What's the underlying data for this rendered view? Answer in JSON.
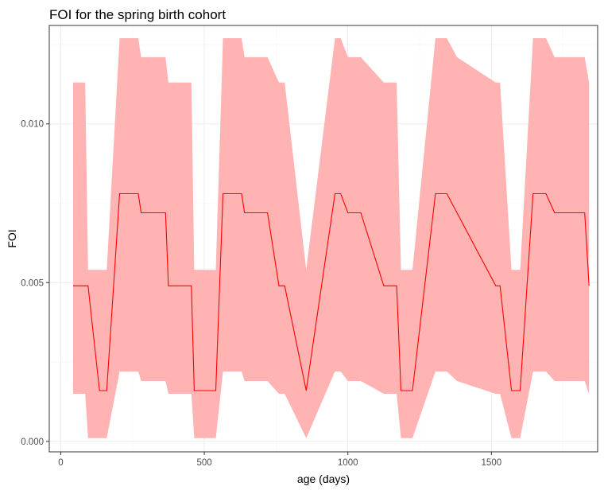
{
  "chart_data": {
    "type": "area",
    "title": "FOI for the spring birth cohort",
    "xlabel": "age (days)",
    "ylabel": "FOI",
    "xlim": [
      -40,
      1870
    ],
    "ylim": [
      -0.00033,
      0.0131
    ],
    "xticks": [
      0,
      500,
      1000,
      1500
    ],
    "xtick_labels": [
      "0",
      "500",
      "1000",
      "1500"
    ],
    "yticks": [
      0.0,
      0.005,
      0.01
    ],
    "ytick_labels": [
      "0.000",
      "0.005",
      "0.010"
    ],
    "grid": true,
    "legend": "none",
    "colors": {
      "line": "#ff0000",
      "ribbon": "#ffb3b3",
      "panel_border": "#333333",
      "grid_major": "#ebebeb",
      "grid_minor": "#f5f5f5",
      "axis_text": "#4d4d4d",
      "title_text": "#000000"
    },
    "series": [
      {
        "x": [
          43,
          85,
          95,
          135,
          160,
          205,
          270,
          280,
          365,
          375,
          455,
          465,
          530,
          540,
          565,
          630,
          640,
          720,
          760,
          780,
          855,
          955,
          975,
          1000,
          1045,
          1125,
          1170,
          1185,
          1225,
          1305,
          1345,
          1380,
          1515,
          1530,
          1570,
          1600,
          1645,
          1690,
          1720,
          1755,
          1800,
          1825,
          1840
        ],
        "estimate": [
          0.0049,
          0.0049,
          0.0049,
          0.0016,
          0.0016,
          0.0078,
          0.0078,
          0.0072,
          0.0072,
          0.0049,
          0.0049,
          0.0016,
          0.0016,
          0.0016,
          0.0078,
          0.0078,
          0.0072,
          0.0072,
          0.0049,
          0.0049,
          0.0016,
          0.0078,
          0.0078,
          0.0072,
          0.0072,
          0.0049,
          0.0049,
          0.0016,
          0.0016,
          0.0078,
          0.0078,
          0.0072,
          0.0049,
          0.0049,
          0.0016,
          0.0016,
          0.0078,
          0.0078,
          0.0072,
          0.0072,
          0.0072,
          0.0072,
          0.0049
        ],
        "upper": [
          0.0113,
          0.0113,
          0.0054,
          0.0054,
          0.0054,
          0.0127,
          0.0127,
          0.0121,
          0.0121,
          0.0113,
          0.0113,
          0.0054,
          0.0054,
          0.0054,
          0.0127,
          0.0127,
          0.0121,
          0.0121,
          0.0113,
          0.0113,
          0.0054,
          0.0127,
          0.0127,
          0.0121,
          0.0121,
          0.0113,
          0.0113,
          0.0054,
          0.0054,
          0.0127,
          0.0127,
          0.0121,
          0.0113,
          0.0113,
          0.0054,
          0.0054,
          0.0127,
          0.0127,
          0.0121,
          0.0121,
          0.0121,
          0.0121,
          0.0113
        ],
        "lower": [
          0.0015,
          0.0015,
          0.0001,
          0.0001,
          0.0001,
          0.0022,
          0.0022,
          0.0019,
          0.0019,
          0.0015,
          0.0015,
          0.0001,
          0.0001,
          0.0001,
          0.0022,
          0.0022,
          0.0019,
          0.0019,
          0.0015,
          0.0015,
          0.0001,
          0.0022,
          0.0022,
          0.0019,
          0.0019,
          0.0015,
          0.0015,
          0.0001,
          0.0001,
          0.0022,
          0.0022,
          0.0019,
          0.0015,
          0.0015,
          0.0001,
          0.0001,
          0.0022,
          0.0022,
          0.0019,
          0.0019,
          0.0019,
          0.0019,
          0.0015
        ]
      }
    ]
  }
}
